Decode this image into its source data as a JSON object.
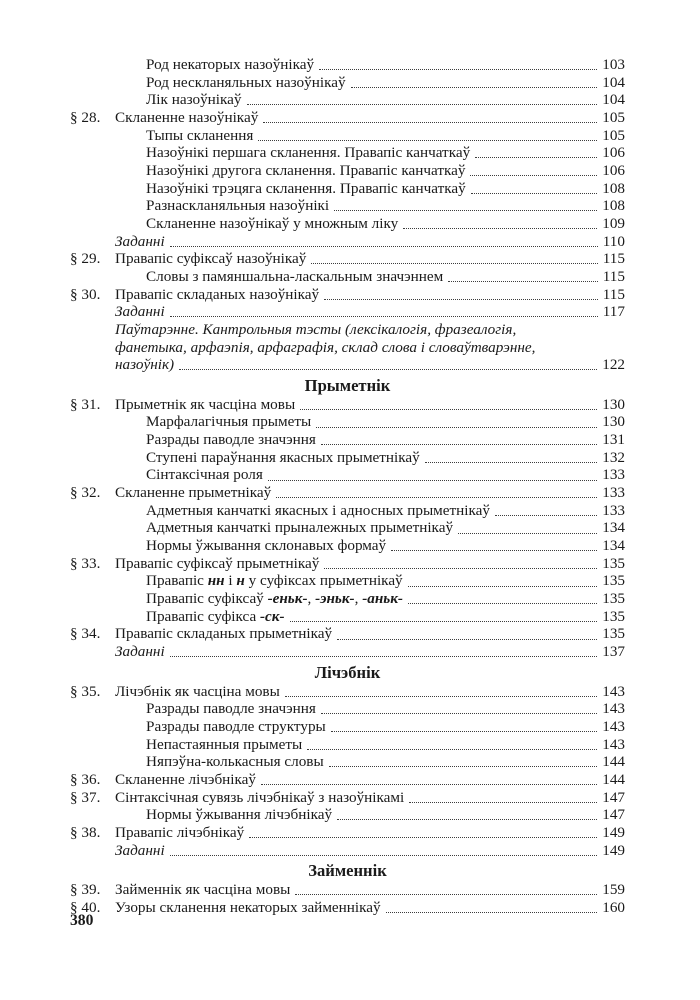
{
  "page": {
    "footer_page_number": "380"
  },
  "toc": {
    "rows": [
      {
        "kind": "sub",
        "text": "Род некаторых назоўнікаў",
        "page": "103"
      },
      {
        "kind": "sub",
        "text": "Род нескланяльных назоўнікаў",
        "page": "104"
      },
      {
        "kind": "sub",
        "text": "Лік назоўнікаў",
        "page": "104"
      },
      {
        "kind": "section",
        "num": "§ 28.",
        "text": "Скланенне назоўнікаў",
        "page": "105"
      },
      {
        "kind": "sub",
        "text": "Тыпы скланення",
        "page": "105"
      },
      {
        "kind": "sub",
        "text": "Назоўнікі першага скланення. Правапіс канчаткаў",
        "page": "106"
      },
      {
        "kind": "sub",
        "text": "Назоўнікі другога скланення. Правапіс канчаткаў",
        "page": "106"
      },
      {
        "kind": "sub",
        "text": "Назоўнікі трэцяга скланення. Правапіс канчаткаў",
        "page": "108"
      },
      {
        "kind": "sub",
        "text": "Разнаскланяльныя назоўнікі",
        "page": "108"
      },
      {
        "kind": "sub",
        "text": "Скланенне назоўнікаў у множным ліку",
        "page": "109"
      },
      {
        "kind": "zadanni",
        "text": "Заданні",
        "page": "110"
      },
      {
        "kind": "section",
        "num": "§ 29.",
        "text": "Правапіс суфіксаў назоўнікаў",
        "page": "115"
      },
      {
        "kind": "sub",
        "text": "Словы з памяншальна-ласкальным значэннем",
        "page": "115"
      },
      {
        "kind": "section",
        "num": "§ 30.",
        "text": "Правапіс складаных назоўнікаў",
        "page": "115"
      },
      {
        "kind": "zadanni",
        "text": "Заданні",
        "page": "117"
      },
      {
        "kind": "note",
        "text": "Паўтарэнне. Кантрольныя тэсты (лексікалогія, фразеалогія,"
      },
      {
        "kind": "note",
        "text": "фанетыка, арфаэпія, арфаграфія, склад слова і словаўтварэнне,"
      },
      {
        "kind": "note",
        "text": "назоўнік)",
        "page": "122"
      },
      {
        "kind": "heading",
        "text": "Прыметнік"
      },
      {
        "kind": "section",
        "num": "§ 31.",
        "text": "Прыметнік як часціна мовы",
        "page": "130"
      },
      {
        "kind": "sub",
        "text": "Марфалагічныя прыметы",
        "page": "130"
      },
      {
        "kind": "sub",
        "text": "Разрады паводле значэння",
        "page": "131"
      },
      {
        "kind": "sub",
        "text": "Ступені параўнання якасных прыметнікаў",
        "page": "132"
      },
      {
        "kind": "sub",
        "text": "Сінтаксічная роля",
        "page": "133"
      },
      {
        "kind": "section",
        "num": "§ 32.",
        "text": "Скланенне прыметнікаў",
        "page": "133"
      },
      {
        "kind": "sub",
        "text": "Адметныя канчаткі якасных і адносных прыметнікаў",
        "page": "133"
      },
      {
        "kind": "sub",
        "text": "Адметныя канчаткі прыналежных прыметнікаў",
        "page": "134"
      },
      {
        "kind": "sub",
        "text": "Нормы ўжывання склонавых формаў",
        "page": "134"
      },
      {
        "kind": "section",
        "num": "§ 33.",
        "text": "Правапіс суфіксаў прыметнікаў",
        "page": "135"
      },
      {
        "kind": "sub",
        "segments": [
          {
            "t": "Правапіс "
          },
          {
            "t": "нн",
            "bi": true
          },
          {
            "t": " і "
          },
          {
            "t": "н",
            "bi": true
          },
          {
            "t": " у суфіксах прыметнікаў"
          }
        ],
        "page": "135"
      },
      {
        "kind": "sub",
        "segments": [
          {
            "t": "Правапіс суфіксаў "
          },
          {
            "t": "-еньк-",
            "bi": true
          },
          {
            "t": ", "
          },
          {
            "t": "-эньк-",
            "bi": true
          },
          {
            "t": ", "
          },
          {
            "t": "-аньк-",
            "bi": true
          },
          {
            "t": " "
          }
        ],
        "page": "135"
      },
      {
        "kind": "sub",
        "segments": [
          {
            "t": "Правапіс суфікса "
          },
          {
            "t": "-ск-",
            "bi": true
          },
          {
            "t": " "
          }
        ],
        "page": "135"
      },
      {
        "kind": "section",
        "num": "§ 34.",
        "text": "Правапіс складаных прыметнікаў",
        "page": "135"
      },
      {
        "kind": "zadanni",
        "text": "Заданні",
        "page": "137"
      },
      {
        "kind": "heading",
        "text": "Лічэбнік"
      },
      {
        "kind": "section",
        "num": "§ 35.",
        "text": "Лічэбнік як часціна мовы",
        "page": "143"
      },
      {
        "kind": "sub",
        "text": "Разрады паводле значэння",
        "page": "143"
      },
      {
        "kind": "sub",
        "text": "Разрады паводле структуры",
        "page": "143"
      },
      {
        "kind": "sub",
        "text": "Непастаянныя прыметы",
        "page": "143"
      },
      {
        "kind": "sub",
        "text": "Няпэўна-колькасныя словы",
        "page": "144"
      },
      {
        "kind": "section",
        "num": "§ 36.",
        "text": "Скланенне лічэбнікаў",
        "page": "144"
      },
      {
        "kind": "section",
        "num": "§ 37.",
        "text": "Сінтаксічная сувязь лічэбнікаў з назоўнікамі",
        "page": "147"
      },
      {
        "kind": "sub",
        "text": "Нормы ўжывання лічэбнікаў",
        "page": "147"
      },
      {
        "kind": "section",
        "num": "§ 38.",
        "text": "Правапіс лічэбнікаў",
        "page": "149"
      },
      {
        "kind": "zadanni",
        "text": "Заданні",
        "page": "149"
      },
      {
        "kind": "heading",
        "text": "Займеннік"
      },
      {
        "kind": "section",
        "num": "§ 39.",
        "text": "Займеннік як часціна мовы",
        "page": "159"
      },
      {
        "kind": "section",
        "num": "§ 40.",
        "text": "Узоры скланення некаторых займеннікаў",
        "page": "160"
      }
    ]
  }
}
